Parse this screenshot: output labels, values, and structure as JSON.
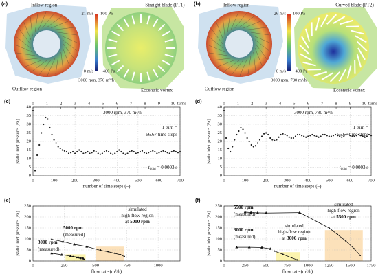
{
  "figures": [
    {
      "panel": "(a)",
      "inflow": "Inflow region",
      "blade": "Straight blade (PT1)",
      "vel_max": "21 m/s",
      "p_max": "100 Pa",
      "vel_min": "0 m/s",
      "p_min": "−400 Pa",
      "outflow": "Outflow region",
      "condition": "3000 rpm, 370 m³/h",
      "vortex": "Eccentric vortex"
    },
    {
      "panel": "(b)",
      "inflow": "Inflow region",
      "blade": "Curved blade (PT2)",
      "vel_max": "26 m/s",
      "p_max": "100 Pa",
      "vel_min": "0 m/s",
      "p_min": "−400 Pa",
      "outflow": "Outflow region",
      "condition": "3000 rpm, 780 m³/h",
      "vortex": "Eccentric vortex"
    }
  ],
  "chart_data": [
    {
      "type": "scatter",
      "panel": "(c)",
      "color": "#222222",
      "grid": true,
      "xlabel": "number of time steps (–)",
      "ylabel": "|static inlet pressure| (Pa)",
      "xlim": [
        0,
        700
      ],
      "xticks": [
        0,
        100,
        200,
        300,
        400,
        500,
        600,
        700
      ],
      "ylim": [
        0,
        40
      ],
      "yticks": [
        0,
        5,
        10,
        15,
        20,
        25,
        30,
        35,
        40
      ],
      "x2lim": [
        0,
        10.5
      ],
      "x2ticks": [
        0,
        1,
        2,
        3,
        4,
        5,
        6,
        7,
        8,
        9,
        10
      ],
      "x2label": "turns",
      "annotations": [
        [
          {
            "t": "3000 rpm, 370 m³/h"
          }
        ],
        [
          {
            "t": "1 turn ="
          }
        ],
        [
          {
            "t": "66.67 time steps"
          }
        ],
        [
          {
            "t": "t",
            "i": true
          },
          {
            "t": "num",
            "sub": true
          },
          {
            "t": "= 0.0003 s"
          }
        ]
      ],
      "x": [
        0,
        10,
        20,
        30,
        40,
        50,
        60,
        70,
        80,
        90,
        100,
        110,
        120,
        130,
        140,
        150,
        160,
        170,
        180,
        190,
        200,
        210,
        220,
        230,
        240,
        250,
        260,
        270,
        280,
        290,
        300,
        310,
        320,
        330,
        340,
        350,
        360,
        370,
        380,
        390,
        400,
        410,
        420,
        430,
        440,
        450,
        460,
        470,
        480,
        490,
        500,
        510,
        520,
        530,
        540,
        550,
        560,
        570,
        580,
        590,
        600,
        610,
        620,
        630,
        640,
        650,
        660,
        670,
        680,
        690,
        700
      ],
      "values": [
        38,
        3,
        12,
        18,
        25,
        30,
        34,
        33,
        28,
        24,
        21,
        19,
        17,
        16,
        15,
        14.5,
        14,
        13,
        13.5,
        14,
        13,
        14,
        15,
        14,
        13,
        13.5,
        14,
        13,
        13.5,
        14.5,
        14,
        13,
        12.5,
        13,
        14,
        14.5,
        14,
        13,
        12.5,
        13,
        14,
        15,
        14,
        13,
        12.5,
        13,
        14,
        14.5,
        14,
        13,
        13.5,
        14,
        14.5,
        13.5,
        13,
        13.5,
        14,
        14.5,
        14,
        13,
        13.5,
        14,
        14.5,
        14,
        13.5,
        13,
        14,
        14.5,
        14,
        13.5,
        14
      ]
    },
    {
      "type": "scatter",
      "panel": "(d)",
      "color": "#222222",
      "grid": true,
      "xlabel": "number of time steps (–)",
      "ylabel": "|static inlet pressure| (Pa)",
      "xlim": [
        0,
        700
      ],
      "xticks": [
        0,
        100,
        200,
        300,
        400,
        500,
        600,
        700
      ],
      "ylim": [
        0,
        40
      ],
      "yticks": [
        0,
        5,
        10,
        15,
        20,
        25,
        30,
        35,
        40
      ],
      "x2lim": [
        0,
        10.5
      ],
      "x2ticks": [
        0,
        1,
        2,
        3,
        4,
        5,
        6,
        7,
        8,
        9,
        10
      ],
      "x2label": "turns",
      "annotations": [
        [
          {
            "t": "3000 rpm, 780 m³/h"
          }
        ],
        [
          {
            "t": "1 turn ="
          }
        ],
        [
          {
            "t": "66.67 time steps"
          }
        ],
        [
          {
            "t": "t",
            "i": true
          },
          {
            "t": "num",
            "sub": true
          },
          {
            "t": "= 0.0003 s"
          }
        ]
      ],
      "x": [
        0,
        10,
        20,
        30,
        40,
        50,
        60,
        70,
        80,
        90,
        100,
        110,
        120,
        130,
        140,
        150,
        160,
        170,
        180,
        190,
        200,
        210,
        220,
        230,
        240,
        250,
        260,
        270,
        280,
        290,
        300,
        310,
        320,
        330,
        340,
        350,
        360,
        370,
        380,
        390,
        400,
        410,
        420,
        430,
        440,
        450,
        460,
        470,
        480,
        490,
        500,
        510,
        520,
        530,
        540,
        550,
        560,
        570,
        580,
        590,
        600,
        610,
        620,
        630,
        640,
        650,
        660,
        670,
        680,
        690,
        700
      ],
      "values": [
        38,
        22,
        16,
        14,
        17,
        21,
        24,
        26,
        28,
        27,
        25,
        22,
        20,
        18,
        17,
        17.5,
        19,
        21,
        23,
        24.5,
        25,
        24,
        22,
        21,
        20.5,
        21,
        22.5,
        24,
        24.5,
        24,
        23.5,
        22.5,
        22,
        22,
        23,
        24,
        24,
        23.5,
        23,
        22.5,
        23,
        23.5,
        24,
        23.5,
        23,
        22.5,
        23,
        24,
        24,
        23.5,
        23,
        23,
        23.5,
        24,
        23.5,
        23,
        22.5,
        23,
        24,
        24,
        23.5,
        23,
        23,
        23.5,
        24,
        23.5,
        23,
        22.5,
        23,
        24,
        23.5
      ]
    },
    {
      "type": "line",
      "panel": "(e)",
      "grid": true,
      "xlabel": "flow rate (m³/h)",
      "ylabel": "|static inlet pressure| (Pa)",
      "xlim": [
        0,
        1175
      ],
      "xticks": [
        0,
        250,
        500,
        750,
        1000
      ],
      "ylim": [
        0,
        250
      ],
      "yticks": [
        0,
        50,
        100,
        150,
        200,
        250
      ],
      "regions": [
        {
          "color": "#fbf2a0",
          "x": [
            260,
            420
          ],
          "y": [
            0,
            30
          ]
        },
        {
          "color": "#fcdcae",
          "x": [
            500,
            730
          ],
          "y": [
            0,
            65
          ]
        }
      ],
      "series": [
        {
          "color": "#111111",
          "marker": "triangle",
          "x": [
            150,
            240,
            330,
            430,
            540
          ],
          "values": [
            98,
            88,
            75,
            65,
            48
          ]
        },
        {
          "color": "#111111",
          "marker": "dot",
          "x": [
            540,
            600,
            650,
            700,
            730
          ],
          "values": [
            48,
            42,
            35,
            28,
            20
          ]
        },
        {
          "color": "#111111",
          "marker": "triangle",
          "x": [
            150,
            230,
            300,
            360,
            400
          ],
          "values": [
            35,
            28,
            22,
            17,
            12
          ]
        },
        {
          "color": "#111111",
          "marker": "dot",
          "x": [
            320,
            350,
            380,
            410
          ],
          "values": [
            20,
            15,
            11,
            7
          ]
        }
      ],
      "annotations": [
        [
          {
            "t": "5000 rpm",
            "b": true
          }
        ],
        [
          {
            "t": "(measured)"
          }
        ],
        [
          {
            "t": "3000 rpm",
            "b": true
          }
        ],
        [
          {
            "t": "(measured)"
          }
        ],
        [
          {
            "t": "simulated"
          }
        ],
        [
          {
            "t": "high-flow region"
          }
        ],
        [
          {
            "t": "at"
          },
          {
            "t": "5000 rpm",
            "b": true
          }
        ]
      ]
    },
    {
      "type": "line",
      "panel": "(f)",
      "grid": true,
      "xlabel": "flow rate (m³/h)",
      "ylabel": "|static inlet pressure| (Pa)",
      "xlim": [
        0,
        1750
      ],
      "xticks": [
        0,
        250,
        500,
        750,
        1000,
        1250,
        1500,
        1750
      ],
      "ylim": [
        0,
        250
      ],
      "yticks": [
        0,
        50,
        100,
        150,
        200,
        250
      ],
      "regions": [
        {
          "color": "#fbf2a0",
          "x": [
            620,
            900
          ],
          "y": [
            0,
            40
          ]
        },
        {
          "color": "#fcdcae",
          "x": [
            1200,
            1650
          ],
          "y": [
            0,
            140
          ]
        }
      ],
      "series": [
        {
          "color": "#111111",
          "marker": "triangle",
          "x": [
            250,
            320,
            400,
            500,
            900
          ],
          "values": [
            222,
            220,
            219,
            218,
            220
          ]
        },
        {
          "color": "#111111",
          "marker": "dot",
          "x": [
            900,
            1250,
            1350,
            1450,
            1550,
            1620
          ],
          "values": [
            220,
            150,
            120,
            90,
            55,
            25
          ]
        },
        {
          "color": "#111111",
          "marker": "triangle",
          "x": [
            150,
            300,
            450,
            550
          ],
          "values": [
            62,
            62,
            61,
            55
          ]
        },
        {
          "color": "#111111",
          "marker": "dot",
          "x": [
            600,
            700,
            800,
            870
          ],
          "values": [
            45,
            30,
            15,
            5
          ]
        }
      ],
      "annotations": [
        [
          {
            "t": "5500 rpm",
            "b": true
          }
        ],
        [
          {
            "t": "(measured)"
          }
        ],
        [
          {
            "t": "3000 rpm",
            "b": true
          }
        ],
        [
          {
            "t": "(measured)"
          }
        ],
        [
          {
            "t": "simulated"
          }
        ],
        [
          {
            "t": "high-flow region"
          }
        ],
        [
          {
            "t": "at"
          },
          {
            "t": "5500 rpm",
            "b": true
          }
        ],
        [
          {
            "t": "simulated"
          }
        ],
        [
          {
            "t": "high-flow region"
          }
        ],
        [
          {
            "t": "at"
          },
          {
            "t": "3000 rpm",
            "b": true
          }
        ]
      ]
    }
  ]
}
